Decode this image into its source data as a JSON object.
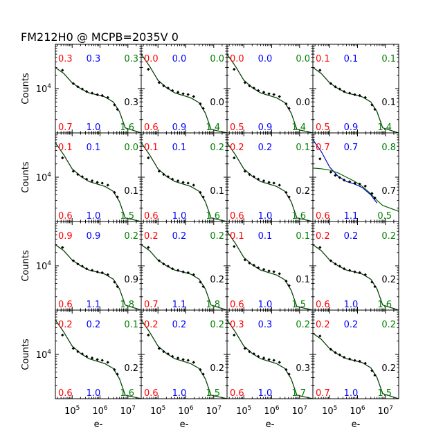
{
  "title": "FM212H0 @ MCPB=2035V 0",
  "colors": {
    "red": "#ff0000",
    "blue": "#0000ff",
    "green": "#008000",
    "black": "#000000",
    "fit_green": "#006400",
    "fit_blue": "#0000c0"
  },
  "chart_data": {
    "type": "scatter",
    "layout": "grid",
    "rows": 4,
    "cols": 4,
    "x_scale": "log",
    "y_scale": "log",
    "xlim": [
      25000,
      30000000
    ],
    "ylim": [
      1000,
      100000
    ],
    "xlabel": "e-",
    "ylabel": "Counts",
    "x_tick_labels": [
      "10^5",
      "10^6",
      "10^7"
    ],
    "x_tick_values": [
      100000,
      1000000,
      10000000
    ],
    "y_tick_labels": [
      "10^4"
    ],
    "y_tick_values": [
      10000
    ],
    "panels": [
      {
        "row": 0,
        "col": 0,
        "tl": "0.3",
        "tm": "0.3",
        "tr": "0.3",
        "mid": "0.3",
        "bl": "0.7",
        "bm": "1.0",
        "br": "1.6",
        "variant": 0
      },
      {
        "row": 0,
        "col": 1,
        "tl": "0.0",
        "tm": "0.0",
        "tr": "0.0",
        "mid": "0.0",
        "bl": "0.6",
        "bm": "0.9",
        "br": "1.4",
        "variant": 1
      },
      {
        "row": 0,
        "col": 2,
        "tl": "0.0",
        "tm": "0.0",
        "tr": "0.0",
        "mid": "0.0",
        "bl": "0.5",
        "bm": "0.9",
        "br": "1.4",
        "variant": 1
      },
      {
        "row": 0,
        "col": 3,
        "tl": "0.1",
        "tm": "0.1",
        "tr": "0.1",
        "mid": "0.1",
        "bl": "0.5",
        "bm": "0.9",
        "br": "1.4",
        "variant": 0
      },
      {
        "row": 1,
        "col": 0,
        "tl": "0.1",
        "tm": "0.1",
        "tr": "0.0",
        "mid": "0.1",
        "bl": "0.6",
        "bm": "1.0",
        "br": "1.5",
        "variant": 1
      },
      {
        "row": 1,
        "col": 1,
        "tl": "0.1",
        "tm": "0.1",
        "tr": "0.2",
        "mid": "0.1",
        "bl": "0.6",
        "bm": "1.0",
        "br": "1.6",
        "variant": 1
      },
      {
        "row": 1,
        "col": 2,
        "tl": "0.2",
        "tm": "0.2",
        "tr": "0.1",
        "mid": "0.2",
        "bl": "0.6",
        "bm": "1.0",
        "br": "1.6",
        "variant": 1
      },
      {
        "row": 1,
        "col": 3,
        "tl": "0.7",
        "tm": "0.7",
        "tr": "0.8",
        "mid": "0.7",
        "bl": "0.6",
        "bm": "1.1",
        "br": "0.5",
        "variant": 2
      },
      {
        "row": 2,
        "col": 0,
        "tl": "0.9",
        "tm": "0.9",
        "tr": "0.2",
        "mid": "0.9",
        "bl": "0.6",
        "bm": "1.1",
        "br": "1.8",
        "variant": 0
      },
      {
        "row": 2,
        "col": 1,
        "tl": "0.2",
        "tm": "0.2",
        "tr": "0.2",
        "mid": "0.2",
        "bl": "0.7",
        "bm": "1.1",
        "br": "1.8",
        "variant": 0
      },
      {
        "row": 2,
        "col": 2,
        "tl": "0.1",
        "tm": "0.1",
        "tr": "0.1",
        "mid": "0.1",
        "bl": "0.6",
        "bm": "1.0",
        "br": "1.5",
        "variant": 1
      },
      {
        "row": 2,
        "col": 3,
        "tl": "0.2",
        "tm": "0.2",
        "tr": "0.2",
        "mid": "0.2",
        "bl": "0.6",
        "bm": "1.0",
        "br": "1.6",
        "variant": 0
      },
      {
        "row": 3,
        "col": 0,
        "tl": "0.2",
        "tm": "0.2",
        "tr": "0.1",
        "mid": "0.2",
        "bl": "0.6",
        "bm": "1.0",
        "br": "1.6",
        "variant": 1
      },
      {
        "row": 3,
        "col": 1,
        "tl": "0.2",
        "tm": "0.2",
        "tr": "0.2",
        "mid": "0.2",
        "bl": "0.6",
        "bm": "1.0",
        "br": "1.5",
        "variant": 1
      },
      {
        "row": 3,
        "col": 2,
        "tl": "0.3",
        "tm": "0.3",
        "tr": "0.2",
        "mid": "0.3",
        "bl": "0.6",
        "bm": "1.0",
        "br": "1.7",
        "variant": 1
      },
      {
        "row": 3,
        "col": 3,
        "tl": "0.2",
        "tm": "0.2",
        "tr": "0.2",
        "mid": "0.2",
        "bl": "0.7",
        "bm": "1.0",
        "br": "1.5",
        "variant": 0
      }
    ],
    "curve_shapes": [
      {
        "x": [
          25000,
          50000,
          100000,
          200000,
          400000,
          800000,
          1500000,
          3000000,
          5000000,
          8000000,
          30000000
        ],
        "y": [
          30000,
          22000,
          13500,
          10000,
          8000,
          7200,
          6500,
          5000,
          3000,
          1300,
          1000
        ]
      },
      {
        "x": [
          25000,
          50000,
          100000,
          200000,
          400000,
          800000,
          1500000,
          3000000,
          5000000,
          8000000,
          30000000
        ],
        "y": [
          60000,
          32000,
          15500,
          10500,
          8000,
          7000,
          6200,
          4800,
          2800,
          1200,
          1000
        ]
      },
      {
        "x": [
          25000,
          50000,
          100000,
          200000,
          400000,
          800000,
          1500000,
          3000000,
          5000000,
          8000000,
          30000000
        ],
        "y": [
          16000,
          15500,
          14500,
          12500,
          10000,
          8000,
          6200,
          4200,
          3000,
          2300,
          1700
        ]
      }
    ],
    "blue_curve": {
      "x": [
        25000,
        50000,
        100000,
        200000,
        400000,
        800000,
        1500000,
        3000000,
        5000000
      ],
      "y": [
        70000,
        38000,
        17000,
        10500,
        8000,
        7000,
        5800,
        4000,
        2600
      ]
    },
    "points": {
      "x": [
        45000,
        110000,
        160000,
        230000,
        330000,
        520000,
        800000,
        1200000,
        1900000,
        3300000,
        4200000
      ],
      "y": [
        26000,
        13000,
        11000,
        9800,
        8600,
        7900,
        7300,
        7000,
        6300,
        4300,
        3400
      ]
    }
  }
}
